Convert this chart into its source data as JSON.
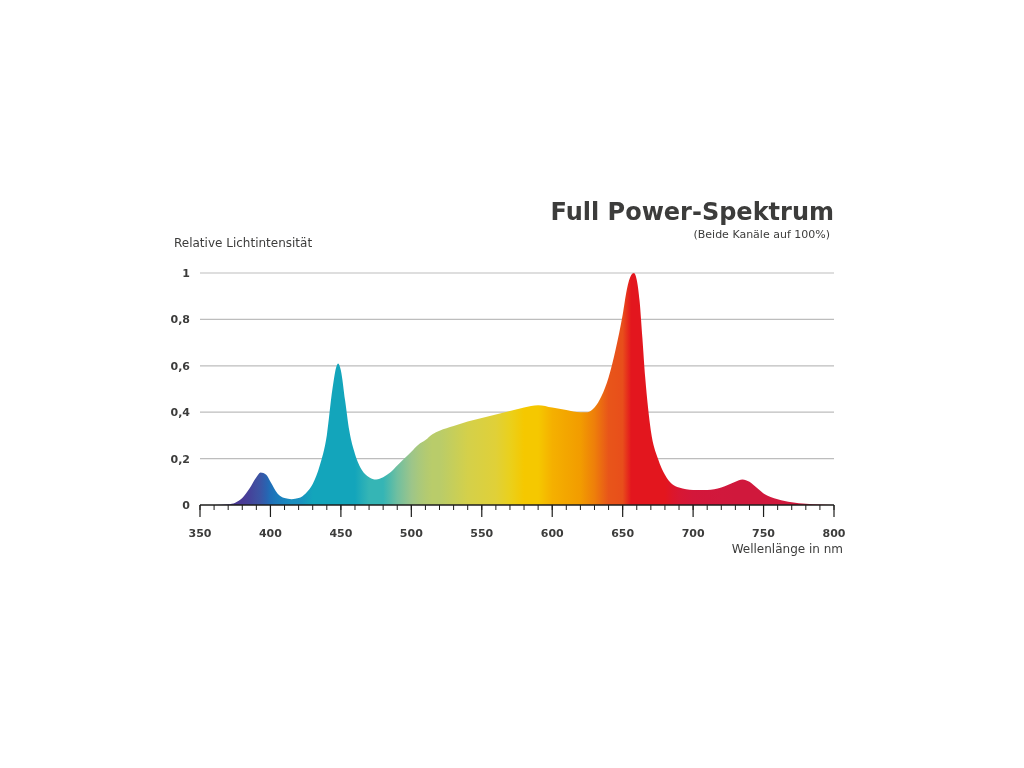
{
  "chart_data": {
    "type": "area",
    "title": "Full Power-Spektrum",
    "subtitle": "(Beide Kanäle auf 100%)",
    "ylabel": "Relative Lichtintensität",
    "xlabel": "Wellenlänge in nm",
    "xlim": [
      350,
      800
    ],
    "xticks": [
      350,
      400,
      450,
      500,
      550,
      600,
      650,
      700,
      750,
      800
    ],
    "ylim": [
      0,
      1
    ],
    "yticks": [
      0,
      {
        "value": 0.2,
        "label": "0,2"
      },
      {
        "value": 0.4,
        "label": "0,4"
      },
      {
        "value": 0.6,
        "label": "0,6"
      },
      {
        "value": 0.8,
        "label": "0,8"
      },
      1
    ],
    "grid": "y",
    "marker": "none",
    "x": [
      350,
      360,
      370,
      375,
      380,
      385,
      390,
      393,
      397,
      400,
      405,
      410,
      415,
      420,
      425,
      430,
      435,
      440,
      444,
      447,
      448,
      450,
      453,
      456,
      460,
      465,
      470,
      475,
      480,
      485,
      490,
      495,
      500,
      505,
      510,
      515,
      520,
      530,
      540,
      550,
      560,
      570,
      580,
      590,
      600,
      610,
      620,
      625,
      630,
      635,
      640,
      645,
      650,
      653,
      656,
      658,
      660,
      662,
      664,
      666,
      668,
      670,
      675,
      680,
      685,
      690,
      700,
      710,
      720,
      730,
      735,
      740,
      745,
      750,
      760,
      770,
      780,
      790,
      800
    ],
    "series": [
      {
        "values": [
          0,
          0,
          0.003,
          0.01,
          0.03,
          0.07,
          0.12,
          0.14,
          0.13,
          0.1,
          0.05,
          0.03,
          0.025,
          0.03,
          0.05,
          0.09,
          0.17,
          0.3,
          0.5,
          0.6,
          0.61,
          0.58,
          0.45,
          0.32,
          0.22,
          0.15,
          0.12,
          0.11,
          0.12,
          0.14,
          0.17,
          0.2,
          0.23,
          0.26,
          0.28,
          0.305,
          0.32,
          0.34,
          0.36,
          0.375,
          0.39,
          0.405,
          0.42,
          0.43,
          0.42,
          0.41,
          0.4,
          0.4,
          0.42,
          0.47,
          0.55,
          0.67,
          0.82,
          0.93,
          0.99,
          1,
          0.97,
          0.88,
          0.72,
          0.55,
          0.42,
          0.32,
          0.2,
          0.13,
          0.09,
          0.075,
          0.065,
          0.065,
          0.075,
          0.1,
          0.11,
          0.1,
          0.075,
          0.05,
          0.025,
          0.012,
          0.005,
          0.002,
          0
        ],
        "colors": [
          "#4a3a95",
          "#4a3a95",
          "#4a3a95",
          "#4a3a95",
          "#4a3a95",
          "#45429a",
          "#3f4fa0",
          "#3a55a5",
          "#2a62b0",
          "#1f6fb8",
          "#1c7cbc",
          "#1a85be",
          "#1a8fbf",
          "#1a8fbf",
          "#169abd",
          "#13a5bb",
          "#13a5bb",
          "#13a5bb",
          "#13a5bb",
          "#13a5bb",
          "#13a5bb",
          "#13a5bb",
          "#13a5bb",
          "#13a5bb",
          "#13a5bb",
          "#25adb8",
          "#35b5b5",
          "#35b5b5",
          "#35b5b5",
          "#52baaa",
          "#70bfa0",
          "#86c295",
          "#9cc58a",
          "#a8c87d",
          "#b2ca72",
          "#b9cc6a",
          "#b9cc6a",
          "#c6ce5a",
          "#d4d04a",
          "#dad041",
          "#e0d038",
          "#ead01c",
          "#f5c800",
          "#f5c800",
          "#f5b000",
          "#f3a600",
          "#f29c00",
          "#f08d05",
          "#ee7f0a",
          "#eb6a12",
          "#e8551a",
          "#e8521a",
          "#e84e1b",
          "#e6321c",
          "#e3161e",
          "#e3161e",
          "#e3161e",
          "#e3161e",
          "#e3161e",
          "#e3161e",
          "#e3161e",
          "#e3161e",
          "#e3161e",
          "#e3161e",
          "#dd162a",
          "#d81733",
          "#d3173a",
          "#d2173b",
          "#d1183c",
          "#d0183c",
          "#d0183c",
          "#d0183c",
          "#d0183c",
          "#d0183c",
          "#d0183c",
          "#d0183c",
          "#d0183c",
          "#d0183c",
          "#d0183c"
        ]
      }
    ]
  }
}
